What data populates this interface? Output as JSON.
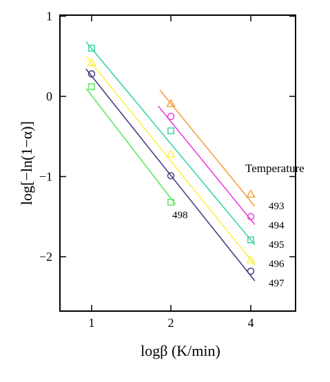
{
  "chart_data": {
    "type": "scatter",
    "xlabel": "logβ (K/min)",
    "ylabel": "log[−ln(1−α)]",
    "legend_title": "Temperature",
    "x_ticks": [
      {
        "value": 1,
        "label": "1"
      },
      {
        "value": 2,
        "label": "2"
      },
      {
        "value": 4,
        "label": "4"
      }
    ],
    "y_ticks": [
      {
        "value": 1,
        "label": "1"
      },
      {
        "value": 0,
        "label": "0"
      },
      {
        "value": -1,
        "label": "−1"
      },
      {
        "value": -2,
        "label": "−2"
      }
    ],
    "xlim": [
      0.6,
      4.6
    ],
    "ylim": [
      -2.6,
      1.05
    ],
    "grid": false,
    "series": [
      {
        "name": "493",
        "marker": "triangle",
        "color": "#f5a040",
        "points": [
          {
            "x": 2,
            "y": -0.09
          },
          {
            "x": 4,
            "y": -1.22
          }
        ],
        "line": [
          {
            "x": 1.86,
            "y": 0.08
          },
          {
            "x": 4.1,
            "y": -1.37
          }
        ]
      },
      {
        "name": "494",
        "marker": "circle",
        "color": "#ee3cdc",
        "points": [
          {
            "x": 2,
            "y": -0.25
          },
          {
            "x": 4,
            "y": -1.5
          }
        ],
        "line": [
          {
            "x": 1.84,
            "y": -0.12
          },
          {
            "x": 4.1,
            "y": -1.6
          }
        ]
      },
      {
        "name": "495",
        "marker": "square",
        "color": "#38d3a8",
        "points": [
          {
            "x": 1,
            "y": 0.6
          },
          {
            "x": 2,
            "y": -0.43
          },
          {
            "x": 4,
            "y": -1.79
          }
        ],
        "line": [
          {
            "x": 0.93,
            "y": 0.68
          },
          {
            "x": 4.1,
            "y": -1.85
          }
        ]
      },
      {
        "name": "496",
        "marker": "triangle",
        "color": "#ffef4a",
        "points": [
          {
            "x": 1,
            "y": 0.42
          },
          {
            "x": 2,
            "y": -0.72
          },
          {
            "x": 4,
            "y": -2.04
          }
        ],
        "line": [
          {
            "x": 0.93,
            "y": 0.5
          },
          {
            "x": 4.1,
            "y": -2.1
          }
        ]
      },
      {
        "name": "497",
        "marker": "circle",
        "color": "#4a3a84",
        "points": [
          {
            "x": 1,
            "y": 0.28
          },
          {
            "x": 2,
            "y": -0.99
          },
          {
            "x": 4,
            "y": -2.18
          }
        ],
        "line": [
          {
            "x": 0.93,
            "y": 0.34
          },
          {
            "x": 4.1,
            "y": -2.3
          }
        ]
      },
      {
        "name": "498",
        "marker": "square",
        "color": "#5ee85e",
        "points": [
          {
            "x": 1,
            "y": 0.12
          },
          {
            "x": 2,
            "y": -1.32
          }
        ],
        "line": [
          {
            "x": 0.93,
            "y": 0.1
          },
          {
            "x": 2.12,
            "y": -1.35
          }
        ]
      }
    ]
  }
}
